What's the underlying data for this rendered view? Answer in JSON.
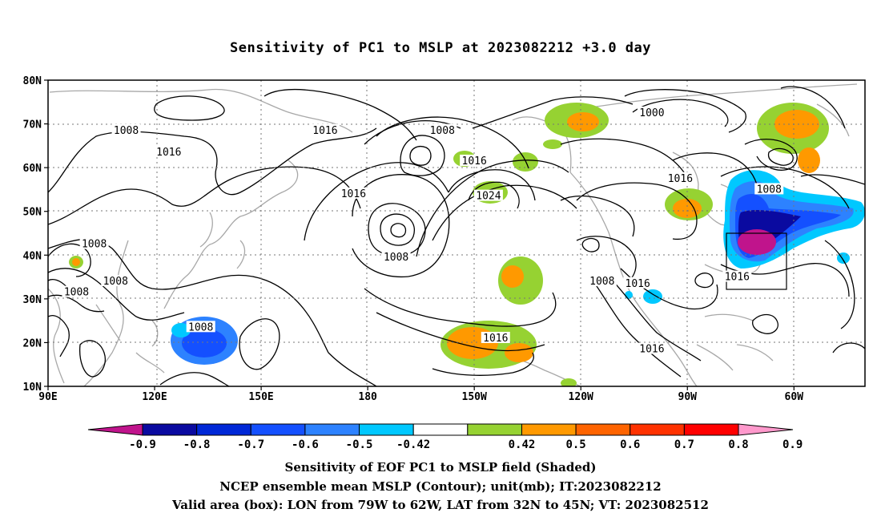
{
  "title": "Sensitivity of PC1 to MSLP at 2023082212 +3.0 day",
  "lat_labels": [
    "80N",
    "70N",
    "60N",
    "50N",
    "40N",
    "30N",
    "20N",
    "10N"
  ],
  "lon_labels": [
    "90E",
    "120E",
    "150E",
    "180",
    "150W",
    "120W",
    "90W",
    "60W"
  ],
  "contour_labels": [
    {
      "text": "1008",
      "lon": 112,
      "lat": 68.5
    },
    {
      "text": "1016",
      "lon": 124,
      "lat": 63.5
    },
    {
      "text": "1016",
      "lon": 168,
      "lat": 68.5
    },
    {
      "text": "1008",
      "lon": 201,
      "lat": 68.5
    },
    {
      "text": "1000",
      "lon": 260,
      "lat": 72.5
    },
    {
      "text": "1016",
      "lon": 210,
      "lat": 61.5
    },
    {
      "text": "1016",
      "lon": 176,
      "lat": 54.0
    },
    {
      "text": "1024",
      "lon": 214,
      "lat": 53.5
    },
    {
      "text": "1016",
      "lon": 268,
      "lat": 57.5
    },
    {
      "text": "1008",
      "lon": 293,
      "lat": 55.0
    },
    {
      "text": "1008",
      "lon": 103,
      "lat": 42.5
    },
    {
      "text": "1008",
      "lon": 98,
      "lat": 31.5
    },
    {
      "text": "1008",
      "lon": 109,
      "lat": 34.0
    },
    {
      "text": "1008",
      "lon": 188,
      "lat": 39.5
    },
    {
      "text": "1008",
      "lon": 133,
      "lat": 23.5
    },
    {
      "text": "1016",
      "lon": 216,
      "lat": 21.0
    },
    {
      "text": "1008",
      "lon": 246,
      "lat": 34.0
    },
    {
      "text": "1016",
      "lon": 256,
      "lat": 33.5
    },
    {
      "text": "1016",
      "lon": 284,
      "lat": 35.0
    },
    {
      "text": "1016",
      "lon": 260,
      "lat": 18.5
    }
  ],
  "colorbar": {
    "labels": [
      "-0.9",
      "-0.8",
      "-0.7",
      "-0.6",
      "-0.5",
      "-0.42",
      "0.42",
      "0.5",
      "0.6",
      "0.7",
      "0.8",
      "0.9"
    ],
    "colors": [
      "#c0148c",
      "#0a0aa0",
      "#0028d7",
      "#1450ff",
      "#2d82ff",
      "#00c8ff",
      "#ffffff",
      "#96d232",
      "#ff9900",
      "#ff6400",
      "#ff3200",
      "#ff0000",
      "#ff99cc"
    ]
  },
  "valid_box": {
    "lon_min": 281,
    "lon_max": 298,
    "lat_min": 32,
    "lat_max": 45
  },
  "captions": [
    "Sensitivity of EOF PC1 to MSLP field (Shaded)",
    "NCEP ensemble mean MSLP (Contour); unit(mb); IT:2023082212",
    "Valid area (box): LON from 79W to 62W, LAT from 32N to 45N; VT: 2023082512"
  ]
}
